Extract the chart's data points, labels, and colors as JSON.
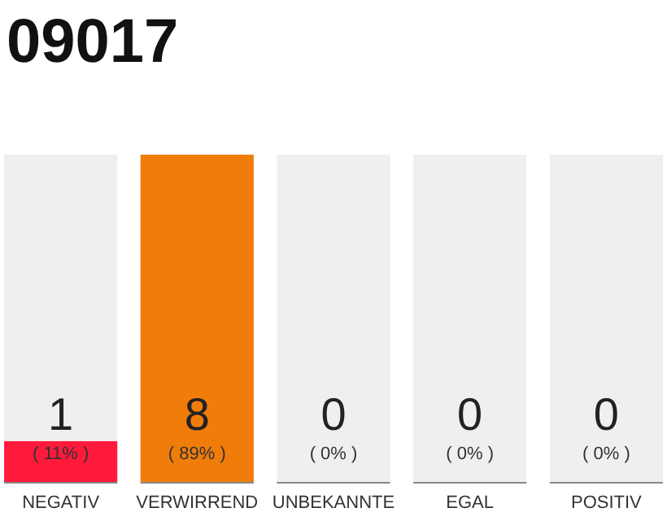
{
  "chart_data": {
    "type": "bar",
    "title": "09017",
    "stacked": true,
    "categories": [
      "NEGATIV",
      "VERWIRREND",
      "UNBEKANNTE",
      "EGAL",
      "POSITIV"
    ],
    "series": [
      {
        "values": [
          1,
          8,
          0,
          0,
          0
        ],
        "colors": [
          "#ff1a3c",
          "#f07d0a",
          "#f07d0a",
          "#f07d0a",
          "#f07d0a"
        ],
        "value_labels": [
          "1",
          "8",
          null,
          null,
          null
        ]
      },
      {
        "values": [
          7,
          0,
          8,
          8,
          8
        ],
        "color": "#efefef"
      }
    ],
    "ylim": [
      0,
      8
    ],
    "annotations": [
      "( 11% )",
      "( 89% )",
      "( 0% )",
      "( 0% )",
      "( 0% )",
      {
        "text": "0",
        "x": "UNBEKANNTE",
        "y": 0
      },
      {
        "text": "0",
        "x": "EGAL",
        "y": 0
      },
      {
        "text": "0",
        "x": "POSITIV",
        "y": 0
      }
    ]
  }
}
